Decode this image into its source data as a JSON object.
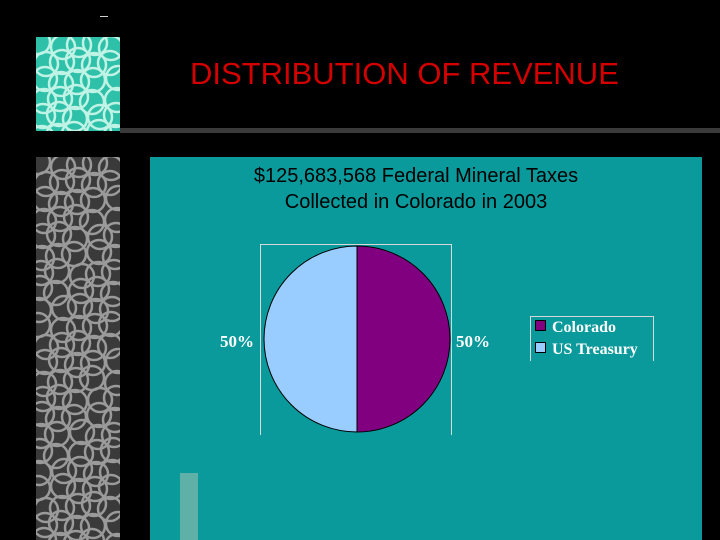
{
  "slide": {
    "title": "DISTRIBUTION OF REVENUE",
    "colors": {
      "title": "#d40000",
      "panel": "#0b9a9c",
      "accent_tile": "#2ec0a8",
      "side_tile": "#3a3a3a"
    }
  },
  "chart_data": {
    "type": "pie",
    "title_lines": [
      "$125,683,568 Federal Mineral Taxes",
      "Collected in Colorado in 2003"
    ],
    "slices": [
      {
        "name": "Colorado",
        "value": 50,
        "label": "50%",
        "color": "#800080"
      },
      {
        "name": "US Treasury",
        "value": 50,
        "label": "50%",
        "color": "#99ccff"
      }
    ],
    "legend_position": "right"
  }
}
